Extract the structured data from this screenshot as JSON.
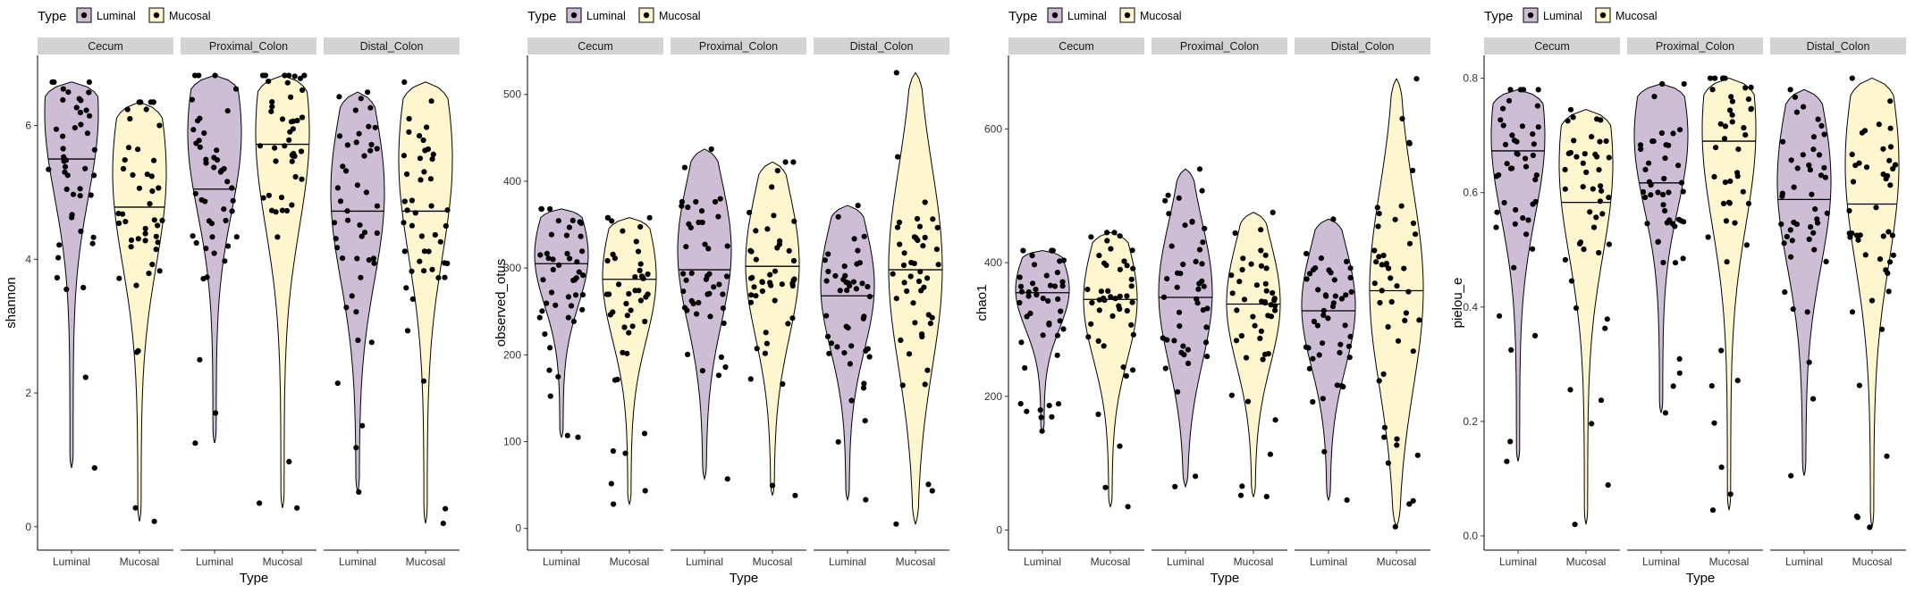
{
  "legend": {
    "title": "Type",
    "entries": [
      {
        "label": "Luminal",
        "color": "#CDBDD5"
      },
      {
        "label": "Mucosal",
        "color": "#FDF6CF"
      }
    ]
  },
  "facets": [
    "Cecum",
    "Proximal_Colon",
    "Distal_Colon"
  ],
  "xlabel": "Type",
  "x_categories": [
    "Luminal",
    "Mucosal"
  ],
  "colors": {
    "strip_bg": "#D3D3D3",
    "outline": "#000000",
    "point": "#000000"
  },
  "chart_data": [
    {
      "type": "violin",
      "metric": "shannon",
      "ylabel": "shannon",
      "xlabel": "Type",
      "ylim": [
        -0.35,
        7.05
      ],
      "yticks": [
        0,
        2,
        4,
        6
      ],
      "groups": [
        {
          "facet": "Cecum",
          "type": "Luminal",
          "min": 0.88,
          "max": 6.65,
          "median": 5.5,
          "peak": 6.2
        },
        {
          "facet": "Cecum",
          "type": "Mucosal",
          "min": 0.08,
          "max": 6.35,
          "median": 4.78,
          "peak": 5.3
        },
        {
          "facet": "Proximal_Colon",
          "type": "Luminal",
          "min": 1.25,
          "max": 6.75,
          "median": 5.05,
          "peak": 5.9
        },
        {
          "facet": "Proximal_Colon",
          "type": "Mucosal",
          "min": 0.28,
          "max": 6.75,
          "median": 5.72,
          "peak": 5.9
        },
        {
          "facet": "Distal_Colon",
          "type": "Luminal",
          "min": 0.52,
          "max": 6.5,
          "median": 4.72,
          "peak": 5.0
        },
        {
          "facet": "Distal_Colon",
          "type": "Mucosal",
          "min": 0.05,
          "max": 6.65,
          "median": 4.72,
          "peak": 5.5
        }
      ]
    },
    {
      "type": "violin",
      "metric": "observed_otus",
      "ylabel": "observed_otus",
      "xlabel": "Type",
      "ylim": [
        -25,
        545
      ],
      "yticks": [
        0,
        100,
        200,
        300,
        400,
        500
      ],
      "groups": [
        {
          "facet": "Cecum",
          "type": "Luminal",
          "min": 105,
          "max": 368,
          "median": 305,
          "peak": 315
        },
        {
          "facet": "Cecum",
          "type": "Mucosal",
          "min": 28,
          "max": 358,
          "median": 287,
          "peak": 290
        },
        {
          "facet": "Proximal_Colon",
          "type": "Luminal",
          "min": 57,
          "max": 437,
          "median": 298,
          "peak": 320
        },
        {
          "facet": "Proximal_Colon",
          "type": "Mucosal",
          "min": 38,
          "max": 422,
          "median": 302,
          "peak": 305
        },
        {
          "facet": "Distal_Colon",
          "type": "Luminal",
          "min": 33,
          "max": 372,
          "median": 268,
          "peak": 280
        },
        {
          "facet": "Distal_Colon",
          "type": "Mucosal",
          "min": 5,
          "max": 525,
          "median": 298,
          "peak": 300
        }
      ]
    },
    {
      "type": "violin",
      "metric": "chao1",
      "ylabel": "chao1",
      "xlabel": "Type",
      "ylim": [
        -30,
        710
      ],
      "yticks": [
        0,
        200,
        400,
        600
      ],
      "groups": [
        {
          "facet": "Cecum",
          "type": "Luminal",
          "min": 148,
          "max": 418,
          "median": 355,
          "peak": 360
        },
        {
          "facet": "Cecum",
          "type": "Mucosal",
          "min": 35,
          "max": 445,
          "median": 345,
          "peak": 345
        },
        {
          "facet": "Proximal_Colon",
          "type": "Luminal",
          "min": 65,
          "max": 540,
          "median": 348,
          "peak": 355
        },
        {
          "facet": "Proximal_Colon",
          "type": "Mucosal",
          "min": 50,
          "max": 475,
          "median": 338,
          "peak": 340
        },
        {
          "facet": "Distal_Colon",
          "type": "Luminal",
          "min": 45,
          "max": 465,
          "median": 328,
          "peak": 335
        },
        {
          "facet": "Distal_Colon",
          "type": "Mucosal",
          "min": 5,
          "max": 675,
          "median": 358,
          "peak": 360
        }
      ]
    },
    {
      "type": "violin",
      "metric": "pielou_e",
      "ylabel": "pielou_e",
      "xlabel": "Type",
      "ylim": [
        -0.025,
        0.84
      ],
      "yticks": [
        0.0,
        0.2,
        0.4,
        0.6,
        0.8
      ],
      "tick_format": "0.1f",
      "groups": [
        {
          "facet": "Cecum",
          "type": "Luminal",
          "min": 0.13,
          "max": 0.78,
          "median": 0.673,
          "peak": 0.7
        },
        {
          "facet": "Cecum",
          "type": "Mucosal",
          "min": 0.02,
          "max": 0.745,
          "median": 0.583,
          "peak": 0.65
        },
        {
          "facet": "Proximal_Colon",
          "type": "Luminal",
          "min": 0.215,
          "max": 0.79,
          "median": 0.617,
          "peak": 0.7
        },
        {
          "facet": "Proximal_Colon",
          "type": "Mucosal",
          "min": 0.045,
          "max": 0.8,
          "median": 0.69,
          "peak": 0.71
        },
        {
          "facet": "Distal_Colon",
          "type": "Luminal",
          "min": 0.105,
          "max": 0.78,
          "median": 0.588,
          "peak": 0.62
        },
        {
          "facet": "Distal_Colon",
          "type": "Mucosal",
          "min": 0.015,
          "max": 0.8,
          "median": 0.58,
          "peak": 0.65
        }
      ]
    }
  ]
}
